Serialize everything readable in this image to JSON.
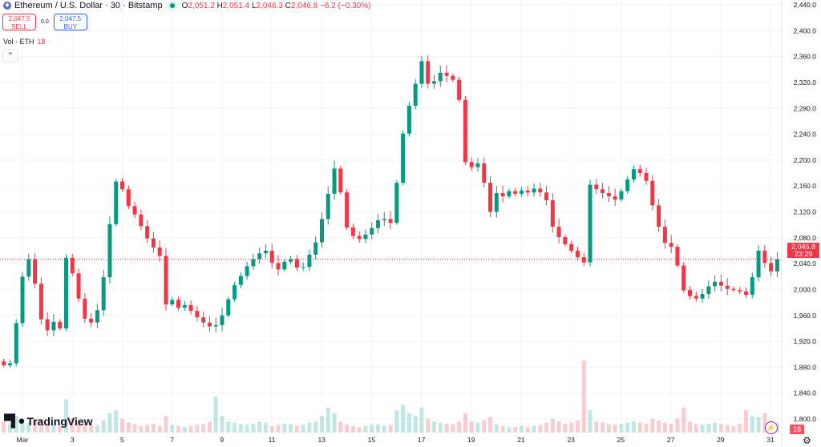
{
  "header": {
    "symbol_icon": "ethereum-icon",
    "title": "Ethereum / U.S. Dollar · 30 · Bitstamp",
    "ohlc": {
      "o_label": "O",
      "o": "2,051.2",
      "h_label": "H",
      "h": "2,051.4",
      "l_label": "L",
      "l": "2,046.3",
      "c_label": "C",
      "c": "2,046.8",
      "change": "−6.2 (−0.30%)"
    }
  },
  "trade": {
    "sell_price": "2,047.5",
    "sell_label": "SELL",
    "spread": "0.0",
    "buy_price": "2,047.5",
    "buy_label": "BUY"
  },
  "volume_legend": {
    "label": "Vol · ETH",
    "value": "18"
  },
  "collapse_icon": "chevron-up-icon",
  "logo": {
    "mark": "17",
    "text": "TradingView"
  },
  "price_tag": {
    "price": "2,046.8",
    "countdown": "23:29"
  },
  "volume_tag": "18",
  "colors": {
    "up": "#089981",
    "down": "#f23645",
    "grid": "#f0f3fa"
  },
  "chart_data": {
    "type": "candlestick",
    "title": "",
    "ylim": [
      1800,
      2440
    ],
    "yticks": [
      "2,440.0",
      "2,400.0",
      "2,360.0",
      "2,320.0",
      "2,280.0",
      "2,240.0",
      "2,200.0",
      "2,160.0",
      "2,120.0",
      "2,080.0",
      "2,040.0",
      "2,000.0",
      "1,960.0",
      "1,920.0",
      "1,880.0",
      "1,840.0",
      "1,800.0"
    ],
    "ytick_values": [
      2440,
      2400,
      2360,
      2320,
      2280,
      2240,
      2200,
      2160,
      2120,
      2080,
      2040,
      2000,
      1960,
      1920,
      1880,
      1840,
      1800
    ],
    "xticks": [
      "Mar",
      "3",
      "5",
      "7",
      "9",
      "11",
      "13",
      "15",
      "17",
      "19",
      "21",
      "23",
      "25",
      "27",
      "29",
      "31"
    ],
    "xtick_days": [
      1,
      3,
      5,
      7,
      9,
      11,
      13,
      15,
      17,
      19,
      21,
      23,
      25,
      27,
      29,
      31
    ],
    "last_price": 2046.8,
    "grid": true,
    "closes": [
      1883,
      1886,
      1948,
      2020,
      2047,
      2009,
      1954,
      1937,
      1950,
      1940,
      2049,
      2025,
      1986,
      1955,
      1949,
      1968,
      2019,
      2101,
      2167,
      2155,
      2129,
      2116,
      2098,
      2079,
      2065,
      2052,
      1977,
      1984,
      1972,
      1976,
      1967,
      1957,
      1949,
      1943,
      1945,
      1960,
      1985,
      2007,
      2021,
      2036,
      2047,
      2056,
      2060,
      2041,
      2031,
      2043,
      2047,
      2034,
      2035,
      2054,
      2073,
      2109,
      2148,
      2187,
      2150,
      2096,
      2083,
      2078,
      2085,
      2095,
      2107,
      2109,
      2103,
      2165,
      2241,
      2284,
      2318,
      2353,
      2318,
      2322,
      2335,
      2330,
      2324,
      2293,
      2197,
      2189,
      2195,
      2165,
      2120,
      2149,
      2144,
      2152,
      2148,
      2153,
      2150,
      2156,
      2150,
      2138,
      2097,
      2081,
      2070,
      2060,
      2050,
      2042,
      2162,
      2155,
      2149,
      2144,
      2139,
      2152,
      2170,
      2186,
      2180,
      2168,
      2130,
      2097,
      2072,
      2066,
      2037,
      1999,
      1990,
      1986,
      1993,
      2005,
      2012,
      2006,
      2001,
      1999,
      1997,
      1992,
      2019,
      2060,
      2041,
      2028,
      2046.8
    ],
    "volume": [
      20,
      15,
      30,
      25,
      18,
      22,
      25,
      15,
      14,
      12,
      60,
      25,
      20,
      18,
      15,
      14,
      22,
      35,
      40,
      25,
      18,
      15,
      12,
      14,
      16,
      12,
      30,
      14,
      12,
      10,
      12,
      14,
      15,
      20,
      65,
      30,
      20,
      18,
      15,
      14,
      16,
      20,
      18,
      12,
      14,
      16,
      15,
      12,
      14,
      18,
      20,
      30,
      45,
      35,
      20,
      15,
      12,
      10,
      12,
      14,
      15,
      12,
      14,
      40,
      50,
      35,
      30,
      45,
      25,
      20,
      18,
      16,
      15,
      20,
      35,
      20,
      18,
      22,
      28,
      15,
      12,
      10,
      10,
      12,
      10,
      12,
      14,
      18,
      25,
      20,
      16,
      18,
      22,
      130,
      40,
      20,
      18,
      15,
      14,
      16,
      18,
      20,
      18,
      16,
      25,
      22,
      18,
      16,
      25,
      45,
      20,
      15,
      14,
      16,
      18,
      15,
      14,
      12,
      16,
      40,
      30,
      28,
      35,
      22,
      18
    ]
  }
}
